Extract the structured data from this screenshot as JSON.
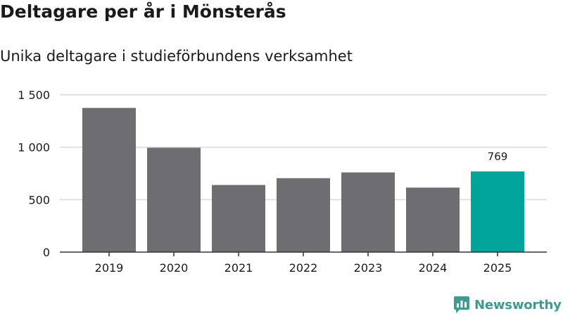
{
  "title": "Deltagare per år i Mönsterås",
  "subtitle": "Unika deltagare i studieförbundens verksamhet",
  "logo": {
    "text": "Newsworthy",
    "icon": "newsworthy-logo-icon"
  },
  "colors": {
    "bar": "#6e6d72",
    "highlight": "#00a49a",
    "grid": "#d9d9d9",
    "axis": "#333333",
    "text": "#1a1a1a",
    "brand": "#3f9a8f"
  },
  "chart_data": {
    "type": "bar",
    "categories": [
      "2019",
      "2020",
      "2021",
      "2022",
      "2023",
      "2024",
      "2025"
    ],
    "values": [
      1375,
      995,
      640,
      705,
      760,
      615,
      769
    ],
    "highlight_index": 6,
    "data_labels": [
      {
        "index": 6,
        "text": "769"
      }
    ],
    "y_ticks": [
      {
        "value": 0,
        "label": "0"
      },
      {
        "value": 500,
        "label": "500"
      },
      {
        "value": 1000,
        "label": "1 000"
      },
      {
        "value": 1500,
        "label": "1 500"
      }
    ],
    "ylim": [
      0,
      1500
    ],
    "grid": true,
    "xlabel": "",
    "ylabel": "",
    "legend": "none"
  }
}
